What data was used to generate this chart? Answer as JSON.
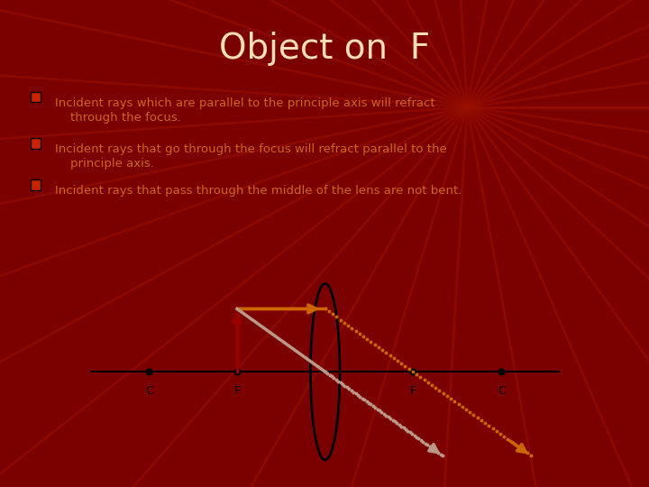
{
  "title": "Object on  F",
  "title_color": "#F5DEB3",
  "title_fontsize": 28,
  "bg_color": "#7B0000",
  "bullet_color": "#CC2200",
  "text_color": "#CC6622",
  "bullets": [
    "Incident rays which are parallel to the principle axis will refract\n    through the focus.",
    "Incident rays that go through the focus will refract parallel to the\n    principle axis.",
    "Incident rays that pass through the middle of the lens are not bent."
  ],
  "diagram_bg": "#FFFFFF",
  "lens_color": "#000000",
  "axis_color": "#000000",
  "object_color": "#990000",
  "ray1_inc_color": "#CC6600",
  "ray1_ref_color": "#CC6600",
  "ray2_color": "#BB9988",
  "label_color": "#000000",
  "ray_lw": 2.5,
  "dot_size": 8,
  "n_radial": 36,
  "radial_color": "#991100",
  "radial_alpha": 0.55,
  "radial_lw": 2.0
}
